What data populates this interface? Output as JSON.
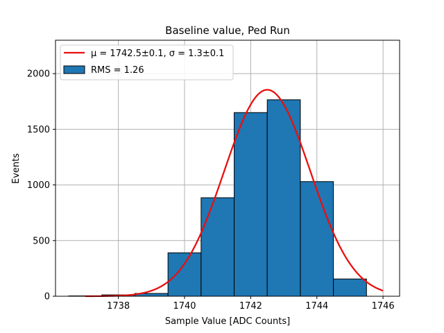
{
  "chart_data": {
    "type": "bar",
    "title": "Baseline value, Ped Run",
    "xlabel": "Sample Value [ADC Counts]",
    "ylabel": "Events",
    "xlim": [
      1736.1,
      1746.5
    ],
    "ylim": [
      0,
      2300
    ],
    "grid": true,
    "legend_position": "top-left",
    "x_ticks": [
      1738,
      1740,
      1742,
      1744,
      1746
    ],
    "x_tick_labels": [
      "1738",
      "1740",
      "1742",
      "1744",
      "1746"
    ],
    "y_ticks": [
      0,
      500,
      1000,
      1500,
      2000
    ],
    "y_tick_labels": [
      "0",
      "500",
      "1000",
      "1500",
      "2000"
    ],
    "bins": [
      {
        "x0": 1736.5,
        "x1": 1737.5,
        "count": 3
      },
      {
        "x0": 1737.5,
        "x1": 1738.5,
        "count": 12
      },
      {
        "x0": 1738.5,
        "x1": 1739.5,
        "count": 25
      },
      {
        "x0": 1739.5,
        "x1": 1740.5,
        "count": 390
      },
      {
        "x0": 1740.5,
        "x1": 1741.5,
        "count": 885
      },
      {
        "x0": 1741.5,
        "x1": 1742.5,
        "count": 1650
      },
      {
        "x0": 1742.5,
        "x1": 1743.5,
        "count": 1765
      },
      {
        "x0": 1743.5,
        "x1": 1744.5,
        "count": 1030
      },
      {
        "x0": 1744.5,
        "x1": 1745.5,
        "count": 155
      }
    ],
    "fit": {
      "mu": 1742.5,
      "sigma": 1.3,
      "amplitude": 1855,
      "x_range": [
        1737,
        1746
      ]
    },
    "legend": {
      "fit_label": "μ = 1742.5±0.1, σ = 1.3±0.1",
      "hist_label": "RMS = 1.26"
    },
    "colors": {
      "bar_fill": "#1f77b4",
      "bar_edge": "#000000",
      "fit_line": "#e8100e",
      "grid": "#b0b0b0"
    }
  }
}
